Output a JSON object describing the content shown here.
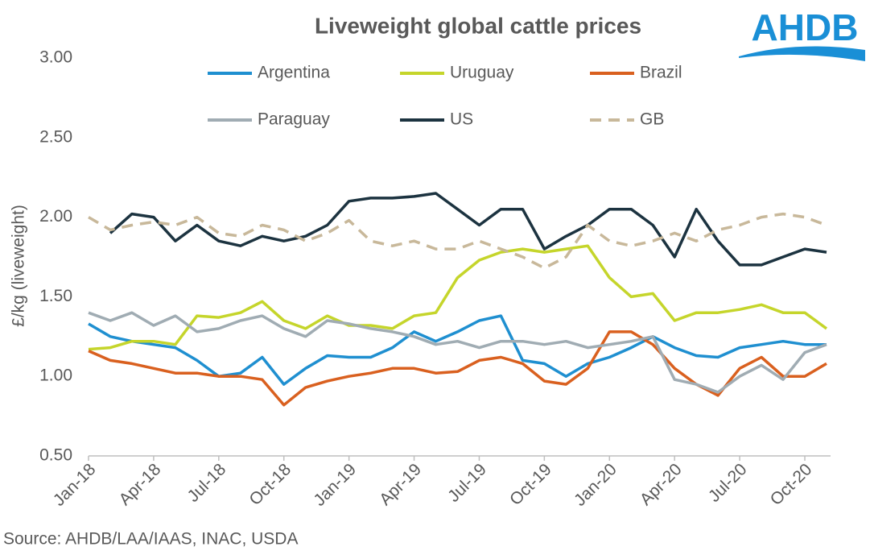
{
  "chart_data": {
    "type": "line",
    "title": "Liveweight global cattle prices",
    "logo": "AHDB",
    "y_label": "£/kg (liveweight)",
    "source": "Source: AHDB/LAA/IAAS, INAC, USDA",
    "categories": [
      "Jan-18",
      null,
      null,
      "Apr-18",
      null,
      null,
      "Jul-18",
      null,
      null,
      "Oct-18",
      null,
      null,
      "Jan-19",
      null,
      null,
      "Apr-19",
      null,
      null,
      "Jul-19",
      null,
      null,
      "Oct-19",
      null,
      null,
      "Jan-20",
      null,
      null,
      "Apr-20",
      null,
      null,
      "Jul-20",
      null,
      null,
      "Oct-20",
      null
    ],
    "ylim": [
      0.5,
      3.0
    ],
    "yticks": [
      {
        "value": 0.5,
        "label": "0.50"
      },
      {
        "value": 1.0,
        "label": "1.00"
      },
      {
        "value": 1.5,
        "label": "1.50"
      },
      {
        "value": 2.0,
        "label": "2.00"
      },
      {
        "value": 2.5,
        "label": "2.50"
      },
      {
        "value": 3.0,
        "label": "3.00"
      }
    ],
    "grid": false,
    "series": [
      {
        "name": "Argentina",
        "color": "#1f8fd0",
        "dashed": false,
        "values": [
          1.33,
          1.25,
          1.22,
          1.2,
          1.18,
          1.1,
          1.0,
          1.02,
          1.12,
          0.95,
          1.05,
          1.13,
          1.12,
          1.12,
          1.18,
          1.28,
          1.22,
          1.28,
          1.35,
          1.38,
          1.1,
          1.08,
          1.0,
          1.08,
          1.12,
          1.18,
          1.25,
          1.18,
          1.13,
          1.12,
          1.18,
          1.2,
          1.22,
          1.2,
          1.2
        ]
      },
      {
        "name": "Uruguay",
        "color": "#c5d52b",
        "dashed": false,
        "values": [
          1.17,
          1.18,
          1.22,
          1.22,
          1.2,
          1.38,
          1.37,
          1.4,
          1.47,
          1.35,
          1.3,
          1.38,
          1.32,
          1.32,
          1.3,
          1.38,
          1.4,
          1.62,
          1.73,
          1.78,
          1.8,
          1.78,
          1.8,
          1.82,
          1.62,
          1.5,
          1.52,
          1.35,
          1.4,
          1.4,
          1.42,
          1.45,
          1.4,
          1.4,
          1.3
        ]
      },
      {
        "name": "Brazil",
        "color": "#d9601f",
        "dashed": false,
        "values": [
          1.16,
          1.1,
          1.08,
          1.05,
          1.02,
          1.02,
          1.0,
          1.0,
          0.98,
          0.82,
          0.93,
          0.97,
          1.0,
          1.02,
          1.05,
          1.05,
          1.02,
          1.03,
          1.1,
          1.12,
          1.08,
          0.97,
          0.95,
          1.05,
          1.28,
          1.28,
          1.2,
          1.05,
          0.95,
          0.88,
          1.05,
          1.12,
          1.0,
          1.0,
          1.08
        ]
      },
      {
        "name": "Paraguay",
        "color": "#a0acb3",
        "dashed": false,
        "values": [
          1.4,
          1.35,
          1.4,
          1.32,
          1.38,
          1.28,
          1.3,
          1.35,
          1.38,
          1.3,
          1.25,
          1.35,
          1.33,
          1.3,
          1.28,
          1.25,
          1.2,
          1.22,
          1.18,
          1.22,
          1.22,
          1.2,
          1.22,
          1.18,
          1.2,
          1.22,
          1.25,
          0.98,
          0.95,
          0.9,
          1.0,
          1.07,
          0.98,
          1.15,
          1.2
        ]
      },
      {
        "name": "US",
        "color": "#1c3340",
        "dashed": false,
        "values": [
          null,
          1.9,
          2.02,
          2.0,
          1.85,
          1.95,
          1.85,
          1.82,
          1.88,
          1.85,
          1.88,
          1.95,
          2.1,
          2.12,
          2.12,
          2.13,
          2.15,
          2.05,
          1.95,
          2.05,
          2.05,
          1.8,
          1.88,
          1.95,
          2.05,
          2.05,
          1.95,
          1.75,
          2.05,
          1.85,
          1.7,
          1.7,
          1.75,
          1.8,
          1.78
        ]
      },
      {
        "name": "GB",
        "color": "#c8b89a",
        "dashed": true,
        "values": [
          2.0,
          1.92,
          1.95,
          1.97,
          1.95,
          2.0,
          1.9,
          1.88,
          1.95,
          1.92,
          1.85,
          1.9,
          1.98,
          1.85,
          1.82,
          1.85,
          1.8,
          1.8,
          1.85,
          1.8,
          1.75,
          1.68,
          1.75,
          1.95,
          1.85,
          1.82,
          1.85,
          1.9,
          1.85,
          1.92,
          1.95,
          2.0,
          2.02,
          2.0,
          1.95
        ]
      }
    ]
  }
}
